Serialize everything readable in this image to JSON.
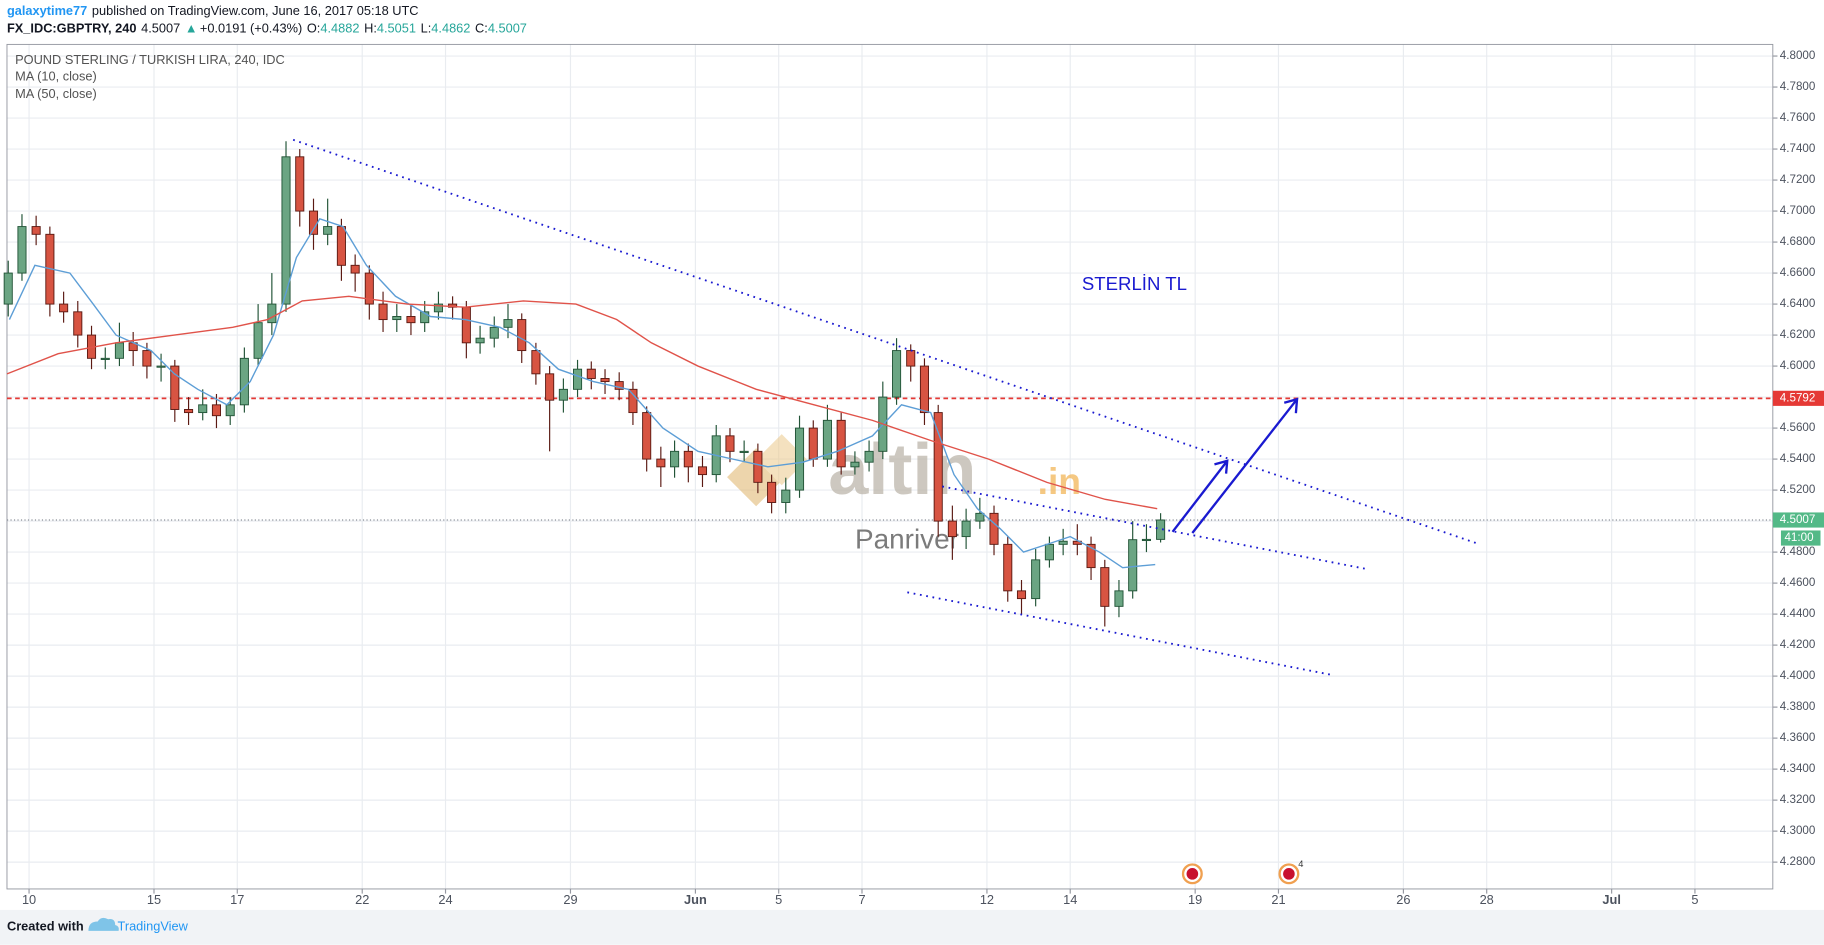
{
  "header": {
    "user": "galaxytime77",
    "published": "published on TradingView.com, June 16, 2017 05:18 UTC",
    "symbol": "FX_IDC:GBPTRY, 240",
    "price": "4.5007",
    "arrow": "▲",
    "change": "+0.0191 (+0.43%)",
    "o_label": "O:",
    "o": "4.4882",
    "h_label": "H:",
    "h": "4.5051",
    "l_label": "L:",
    "l": "4.4862",
    "c_label": "C:",
    "c": "4.5007"
  },
  "footer": {
    "created": "Created with",
    "brand": "TradingView"
  },
  "chart_data": {
    "type": "candlestick",
    "title": "POUND STERLING / TURKISH LIRA, 240, IDC",
    "up_color": "#6ba583",
    "down_color": "#d75442",
    "x": [
      -0.5,
      -0.17,
      0.17,
      0.5,
      0.83,
      1.17,
      1.5,
      1.83,
      2.17,
      2.5,
      2.83,
      3.17,
      3.5,
      3.83,
      4.17,
      4.5,
      4.83,
      5.17,
      5.5,
      5.83,
      6.17,
      6.5,
      6.83,
      7.17,
      7.5,
      7.83,
      8.17,
      8.5,
      8.83,
      9.17,
      9.5,
      9.83,
      10.17,
      10.5,
      10.83,
      11.17,
      11.5,
      11.83,
      12.17,
      12.5,
      12.83,
      13.17,
      13.5,
      13.83,
      14.17,
      14.5,
      14.83,
      15.17,
      15.5,
      15.83,
      16.17,
      16.5,
      16.83,
      17.17,
      17.5,
      17.83,
      18.17,
      18.5,
      18.83,
      19.17,
      19.5,
      19.83,
      20.17,
      20.5,
      20.83,
      21.17,
      21.5,
      21.83,
      22.17,
      22.5,
      22.83,
      23.17,
      23.5,
      23.83,
      24.17,
      24.5,
      24.83,
      25.17,
      25.5,
      25.83,
      26.17,
      26.5,
      26.83,
      27.17
    ],
    "open": [
      4.64,
      4.66,
      4.69,
      4.685,
      4.64,
      4.635,
      4.62,
      4.605,
      4.605,
      4.615,
      4.61,
      4.6,
      4.6,
      4.572,
      4.57,
      4.575,
      4.568,
      4.575,
      4.605,
      4.628,
      4.64,
      4.735,
      4.7,
      4.685,
      4.69,
      4.665,
      4.66,
      4.64,
      4.63,
      4.632,
      4.628,
      4.635,
      4.64,
      4.638,
      4.615,
      4.618,
      4.625,
      4.63,
      4.61,
      4.595,
      4.578,
      4.585,
      4.598,
      4.592,
      4.59,
      4.585,
      4.57,
      4.54,
      4.535,
      4.545,
      4.535,
      4.53,
      4.555,
      4.545,
      4.545,
      4.525,
      4.512,
      4.52,
      4.56,
      4.54,
      4.565,
      4.535,
      4.538,
      4.545,
      4.58,
      4.61,
      4.6,
      4.57,
      4.5,
      4.49,
      4.5,
      4.505,
      4.485,
      4.455,
      4.45,
      4.475,
      4.485,
      4.487,
      4.485,
      4.47,
      4.445,
      4.455,
      4.488,
      4.4882
    ],
    "high": [
      4.668,
      4.698,
      4.697,
      4.69,
      4.648,
      4.642,
      4.626,
      4.612,
      4.628,
      4.622,
      4.615,
      4.608,
      4.604,
      4.58,
      4.585,
      4.582,
      4.58,
      4.612,
      4.64,
      4.66,
      4.745,
      4.74,
      4.708,
      4.708,
      4.695,
      4.672,
      4.665,
      4.648,
      4.64,
      4.64,
      4.642,
      4.648,
      4.645,
      4.642,
      4.626,
      4.632,
      4.64,
      4.634,
      4.615,
      4.6,
      4.592,
      4.604,
      4.603,
      4.598,
      4.596,
      4.59,
      4.574,
      4.548,
      4.552,
      4.55,
      4.542,
      4.562,
      4.56,
      4.552,
      4.55,
      4.53,
      4.528,
      4.568,
      4.565,
      4.575,
      4.57,
      4.545,
      4.552,
      4.59,
      4.618,
      4.614,
      4.605,
      4.575,
      4.51,
      4.508,
      4.515,
      4.51,
      4.49,
      4.462,
      4.482,
      4.49,
      4.495,
      4.498,
      4.49,
      4.475,
      4.462,
      4.5,
      4.498,
      4.5051
    ],
    "low": [
      4.632,
      4.655,
      4.678,
      4.632,
      4.628,
      4.612,
      4.598,
      4.598,
      4.6,
      4.6,
      4.592,
      4.59,
      4.564,
      4.562,
      4.565,
      4.56,
      4.562,
      4.57,
      4.6,
      4.62,
      4.635,
      4.69,
      4.675,
      4.678,
      4.655,
      4.648,
      4.63,
      4.622,
      4.622,
      4.62,
      4.622,
      4.63,
      4.63,
      4.605,
      4.608,
      4.612,
      4.618,
      4.602,
      4.588,
      4.545,
      4.57,
      4.58,
      4.585,
      4.582,
      4.578,
      4.562,
      4.532,
      4.522,
      4.528,
      4.525,
      4.522,
      4.525,
      4.538,
      4.538,
      4.518,
      4.505,
      4.505,
      4.515,
      4.535,
      4.535,
      4.53,
      4.53,
      4.532,
      4.54,
      4.575,
      4.59,
      4.562,
      4.49,
      4.475,
      4.482,
      4.495,
      4.478,
      4.448,
      4.44,
      4.445,
      4.47,
      4.478,
      4.478,
      4.462,
      4.432,
      4.438,
      4.45,
      4.48,
      4.4862
    ],
    "close": [
      4.66,
      4.69,
      4.685,
      4.64,
      4.635,
      4.62,
      4.605,
      4.605,
      4.615,
      4.61,
      4.6,
      4.6,
      4.572,
      4.57,
      4.575,
      4.568,
      4.575,
      4.605,
      4.628,
      4.64,
      4.735,
      4.7,
      4.685,
      4.69,
      4.665,
      4.66,
      4.64,
      4.63,
      4.632,
      4.628,
      4.635,
      4.64,
      4.638,
      4.615,
      4.618,
      4.625,
      4.63,
      4.61,
      4.595,
      4.578,
      4.585,
      4.598,
      4.592,
      4.59,
      4.585,
      4.57,
      4.54,
      4.535,
      4.545,
      4.535,
      4.53,
      4.555,
      4.545,
      4.545,
      4.525,
      4.512,
      4.52,
      4.56,
      4.54,
      4.565,
      4.535,
      4.538,
      4.545,
      4.58,
      4.61,
      4.6,
      4.57,
      4.5,
      4.49,
      4.5,
      4.505,
      4.485,
      4.455,
      4.45,
      4.475,
      4.485,
      4.487,
      4.485,
      4.47,
      4.445,
      4.455,
      4.488,
      4.4882,
      4.5007
    ],
    "series": [
      {
        "name": "MA (10, close)",
        "color": "#5d9ed6",
        "x": [
          -0.47,
          0.14,
          0.98,
          1.54,
          2.09,
          2.93,
          3.49,
          4.05,
          4.75,
          5.31,
          5.87,
          6.42,
          6.98,
          7.54,
          8.1,
          8.8,
          9.64,
          10.47,
          11.31,
          12.01,
          12.71,
          13.55,
          14.39,
          15.22,
          16.06,
          16.9,
          17.74,
          18.58,
          19.41,
          20.25,
          20.95,
          21.65,
          22.21,
          22.77,
          23.32,
          23.88,
          24.44,
          25.0,
          25.7,
          26.26,
          27.04
        ],
        "values": [
          4.63,
          4.665,
          4.66,
          4.64,
          4.62,
          4.61,
          4.595,
          4.585,
          4.575,
          4.59,
          4.62,
          4.67,
          4.695,
          4.69,
          4.665,
          4.645,
          4.632,
          4.63,
          4.625,
          4.615,
          4.598,
          4.59,
          4.585,
          4.56,
          4.545,
          4.54,
          4.535,
          4.538,
          4.545,
          4.555,
          4.575,
          4.57,
          4.53,
          4.508,
          4.495,
          4.48,
          4.485,
          4.49,
          4.48,
          4.47,
          4.472
        ]
      },
      {
        "name": "MA (50, close)",
        "color": "#e0534a",
        "x": [
          -0.53,
          0.7,
          2.09,
          3.49,
          4.89,
          5.73,
          6.56,
          7.68,
          9.08,
          10.47,
          11.87,
          13.13,
          14.11,
          14.94,
          16.06,
          17.46,
          18.85,
          20.25,
          21.65,
          23.04,
          24.44,
          25.84,
          27.09
        ],
        "values": [
          4.595,
          4.608,
          4.615,
          4.62,
          4.625,
          4.63,
          4.642,
          4.645,
          4.64,
          4.638,
          4.642,
          4.64,
          4.63,
          4.615,
          4.6,
          4.585,
          4.575,
          4.565,
          4.552,
          4.54,
          4.525,
          4.514,
          4.508
        ]
      }
    ],
    "annotation": "STERLİN TL",
    "watermark": "altin",
    "watermark_suffix": ".in",
    "watermark_sub": "Panriver",
    "event_count": "4",
    "countdown": "41:00",
    "level": 4.5792,
    "level_color": "#e53935",
    "last_price": 4.5007,
    "last_color": "#53b987",
    "xlim": [
      -0.53,
      41.87
    ],
    "ylim": [
      4.2627,
      4.8075
    ],
    "grid": true,
    "xticks": [
      {
        "value": 0,
        "label": "10"
      },
      {
        "value": 3,
        "label": "15"
      },
      {
        "value": 5,
        "label": "17"
      },
      {
        "value": 8,
        "label": "22"
      },
      {
        "value": 10,
        "label": "24"
      },
      {
        "value": 13,
        "label": "29"
      },
      {
        "value": 16,
        "label": "Jun"
      },
      {
        "value": 18,
        "label": "5"
      },
      {
        "value": 20,
        "label": "7"
      },
      {
        "value": 23,
        "label": "12"
      },
      {
        "value": 25,
        "label": "14"
      },
      {
        "value": 28,
        "label": "19"
      },
      {
        "value": 30,
        "label": "21"
      },
      {
        "value": 33,
        "label": "26"
      },
      {
        "value": 35,
        "label": "28"
      },
      {
        "value": 38,
        "label": "Jul"
      },
      {
        "value": 40,
        "label": "5"
      }
    ],
    "yticks": [
      {
        "value": 4.28,
        "label": "4.2800"
      },
      {
        "value": 4.3,
        "label": "4.3000"
      },
      {
        "value": 4.32,
        "label": "4.3200"
      },
      {
        "value": 4.34,
        "label": "4.3400"
      },
      {
        "value": 4.36,
        "label": "4.3600"
      },
      {
        "value": 4.38,
        "label": "4.3800"
      },
      {
        "value": 4.4,
        "label": "4.4000"
      },
      {
        "value": 4.42,
        "label": "4.4200"
      },
      {
        "value": 4.44,
        "label": "4.4400"
      },
      {
        "value": 4.46,
        "label": "4.4600"
      },
      {
        "value": 4.48,
        "label": "4.4800"
      },
      {
        "value": 4.5,
        "label": "4.5000"
      },
      {
        "value": 4.52,
        "label": "4.5200"
      },
      {
        "value": 4.54,
        "label": "4.5400"
      },
      {
        "value": 4.56,
        "label": "4.5600"
      },
      {
        "value": 4.58,
        "label": "4.5800"
      },
      {
        "value": 4.6,
        "label": "4.6000"
      },
      {
        "value": 4.62,
        "label": "4.6200"
      },
      {
        "value": 4.64,
        "label": "4.6400"
      },
      {
        "value": 4.66,
        "label": "4.6600"
      },
      {
        "value": 4.68,
        "label": "4.6800"
      },
      {
        "value": 4.7,
        "label": "4.7000"
      },
      {
        "value": 4.72,
        "label": "4.7200"
      },
      {
        "value": 4.74,
        "label": "4.7400"
      },
      {
        "value": 4.76,
        "label": "4.7600"
      },
      {
        "value": 4.78,
        "label": "4.7800"
      },
      {
        "value": 4.8,
        "label": "4.8000"
      }
    ]
  }
}
